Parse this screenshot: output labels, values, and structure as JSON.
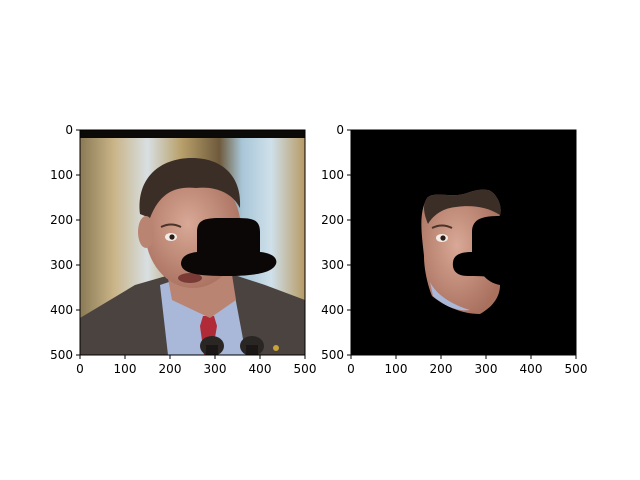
{
  "chart_data": [
    {
      "type": "image",
      "title": "",
      "xlabel": "",
      "ylabel": "",
      "xlim": [
        0,
        500
      ],
      "ylim": [
        500,
        0
      ],
      "x_ticks": [
        0,
        100,
        200,
        300,
        400,
        500
      ],
      "y_ticks": [
        0,
        100,
        200,
        300,
        400,
        500
      ],
      "content": "photograph of a man in a suit and tie with a black bowler-hat-shaped occluder over the right side of his face"
    },
    {
      "type": "image",
      "title": "",
      "xlabel": "",
      "ylabel": "",
      "xlim": [
        0,
        500
      ],
      "ylim": [
        500,
        0
      ],
      "x_ticks": [
        0,
        100,
        200,
        300,
        400,
        500
      ],
      "y_ticks": [
        0,
        100,
        200,
        300,
        400,
        500
      ],
      "content": "segmented face region on a black background with the occluder region removed"
    }
  ],
  "colors": {
    "background": "#ffffff",
    "mask": "#000000",
    "occluder": "#0a0706",
    "skin": "#c89784",
    "suit": "#4a4340",
    "shirt": "#a9b7d8",
    "tie": "#b02a38",
    "curtain_blue": "#a8c6d8",
    "curtain_gold": "#b79a63"
  }
}
